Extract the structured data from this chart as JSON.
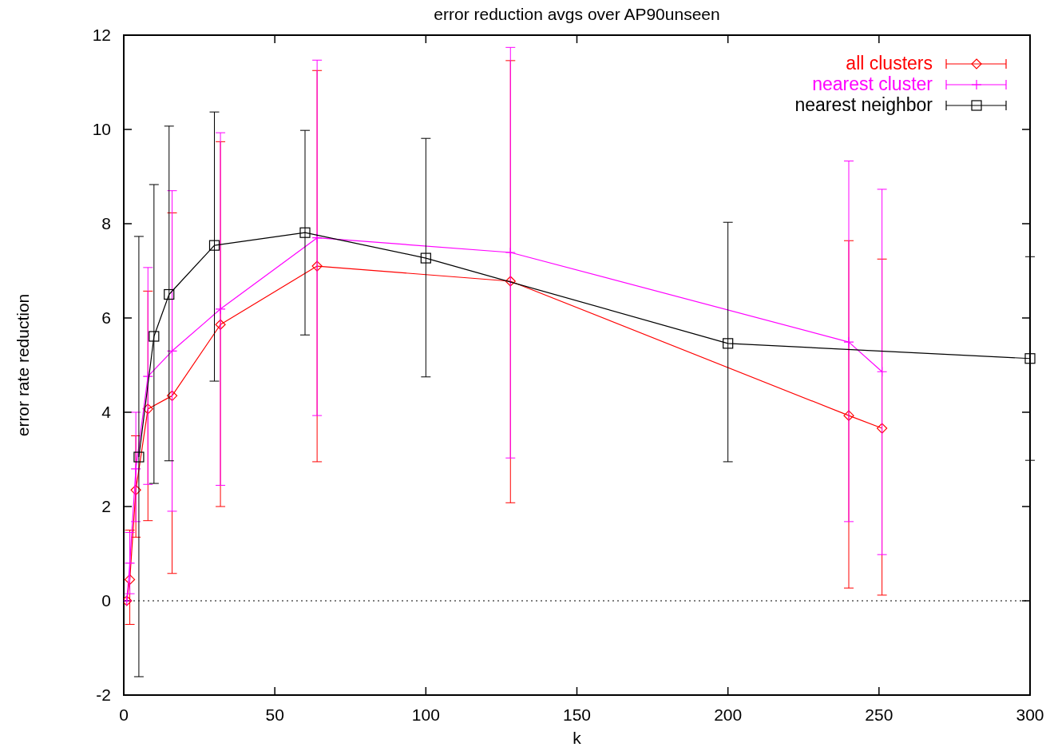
{
  "chart_data": {
    "type": "line",
    "title": "error reduction avgs over AP90unseen",
    "xlabel": "k",
    "ylabel": "error rate reduction",
    "xlim": [
      0,
      300
    ],
    "xticks": [
      0,
      50,
      100,
      150,
      200,
      250,
      300
    ],
    "ylim": [
      -2,
      12
    ],
    "yticks": [
      -2,
      0,
      2,
      4,
      6,
      8,
      10,
      12
    ],
    "grid": false,
    "legend": "top right",
    "ref_lines": [
      {
        "axis": "y",
        "value": 0,
        "line_style": "dotted",
        "color": "#000000"
      }
    ],
    "series": [
      {
        "name": "all clusters",
        "color": "#ff0000",
        "marker": "diamond",
        "x": [
          1,
          2,
          4,
          8,
          16,
          32,
          64,
          128,
          240,
          251
        ],
        "values": [
          0,
          0.45,
          2.35,
          4.07,
          4.35,
          5.86,
          7.1,
          6.78,
          3.93,
          3.66
        ],
        "errors": [
          null,
          [
            -0.5,
            1.5
          ],
          [
            1.35,
            3.5
          ],
          [
            1.7,
            6.57
          ],
          [
            0.58,
            8.23
          ],
          [
            2.0,
            9.74
          ],
          [
            2.95,
            11.25
          ],
          [
            2.08,
            11.46
          ],
          [
            0.27,
            7.64
          ],
          [
            0.12,
            7.25
          ]
        ]
      },
      {
        "name": "nearest cluster",
        "color": "#ff00ff",
        "marker": "cross",
        "x": [
          1,
          2,
          4,
          8,
          16,
          32,
          64,
          128,
          240,
          251
        ],
        "values": [
          0,
          0.8,
          2.8,
          4.76,
          5.3,
          6.19,
          7.7,
          7.39,
          5.49,
          4.86
        ],
        "errors": [
          null,
          [
            0.15,
            1.45
          ],
          [
            1.68,
            4.0
          ],
          [
            2.47,
            7.07
          ],
          [
            1.9,
            8.7
          ],
          [
            2.45,
            9.93
          ],
          [
            3.93,
            11.47
          ],
          [
            3.03,
            11.74
          ],
          [
            1.68,
            9.33
          ],
          [
            0.98,
            8.73
          ]
        ]
      },
      {
        "name": "nearest neighbor",
        "color": "#000000",
        "marker": "square",
        "x": [
          5,
          10,
          15,
          30,
          60,
          100,
          200,
          300
        ],
        "values": [
          3.05,
          5.61,
          6.5,
          7.54,
          7.81,
          7.27,
          5.46,
          5.14
        ],
        "errors": [
          [
            -1.61,
            7.73
          ],
          [
            2.49,
            8.83
          ],
          [
            2.97,
            10.07
          ],
          [
            4.66,
            10.37
          ],
          [
            5.64,
            9.98
          ],
          [
            4.75,
            9.81
          ],
          [
            2.95,
            8.03
          ],
          [
            2.98,
            7.3
          ]
        ]
      }
    ]
  }
}
